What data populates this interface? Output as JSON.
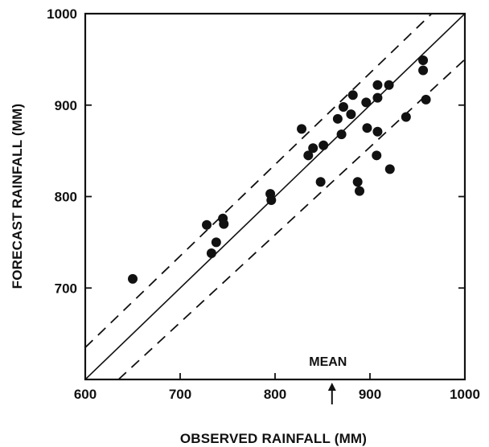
{
  "chart_data": {
    "type": "scatter",
    "title": "",
    "xlabel": "OBSERVED RAINFALL (MM)",
    "ylabel": "FORECAST RAINFALL (MM)",
    "xlim": [
      600,
      1000
    ],
    "ylim": [
      600,
      1000
    ],
    "x_ticks": [
      600,
      700,
      800,
      900,
      1000
    ],
    "y_ticks": [
      700,
      800,
      900,
      1000
    ],
    "grid": false,
    "lines": [
      {
        "style": "solid",
        "from": [
          600,
          600
        ],
        "to": [
          1000,
          1000
        ]
      },
      {
        "style": "dashed",
        "from": [
          600,
          635
        ],
        "to": [
          965,
          1000
        ]
      },
      {
        "style": "dashed",
        "from": [
          635,
          600
        ],
        "to": [
          1000,
          950
        ]
      }
    ],
    "annotations": [
      {
        "text": "MEAN",
        "arrow": "up",
        "x": 860
      }
    ],
    "series": [
      {
        "points": [
          [
            650,
            710
          ],
          [
            728,
            769
          ],
          [
            733,
            738
          ],
          [
            738,
            750
          ],
          [
            745,
            776
          ],
          [
            746,
            770
          ],
          [
            795,
            803
          ],
          [
            796,
            796
          ],
          [
            828,
            874
          ],
          [
            835,
            845
          ],
          [
            840,
            853
          ],
          [
            848,
            816
          ],
          [
            851,
            856
          ],
          [
            866,
            885
          ],
          [
            870,
            868
          ],
          [
            872,
            898
          ],
          [
            880,
            890
          ],
          [
            882,
            911
          ],
          [
            887,
            816
          ],
          [
            889,
            806
          ],
          [
            896,
            903
          ],
          [
            897,
            875
          ],
          [
            907,
            845
          ],
          [
            908,
            871
          ],
          [
            908,
            908
          ],
          [
            908,
            922
          ],
          [
            920,
            922
          ],
          [
            921,
            830
          ],
          [
            938,
            887
          ],
          [
            956,
            949
          ],
          [
            956,
            938
          ],
          [
            959,
            906
          ]
        ]
      }
    ]
  }
}
